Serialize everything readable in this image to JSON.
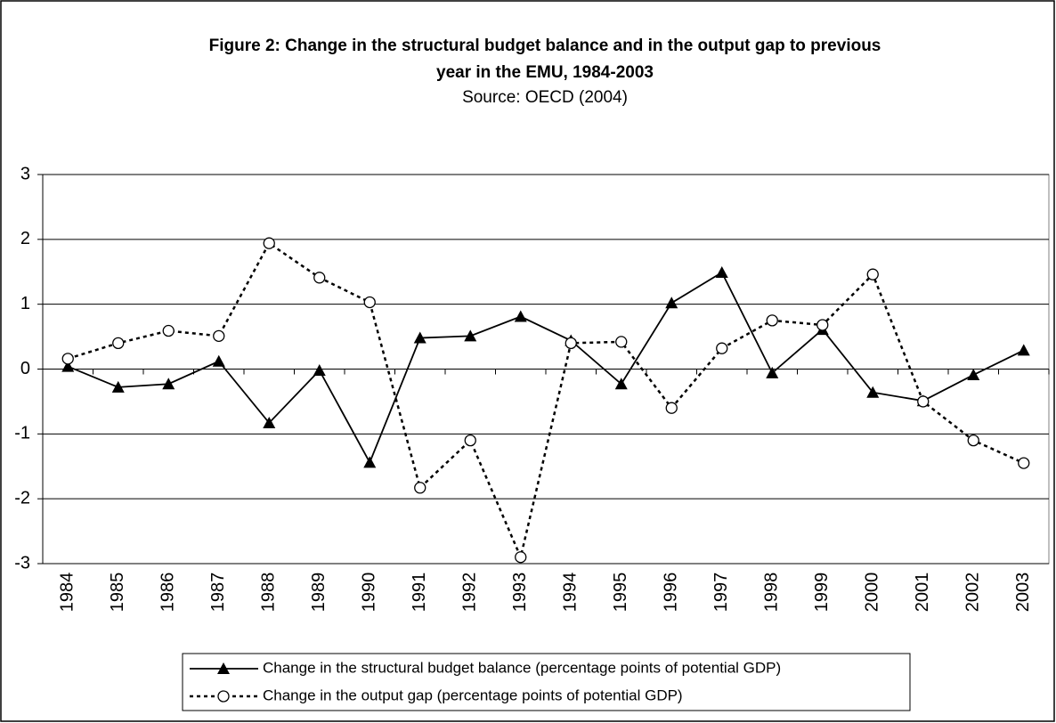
{
  "chart_data": {
    "type": "line",
    "title": [
      "Figure 2: Change in the structural budget balance and in the output gap to previous",
      "year in the EMU, 1984-2003"
    ],
    "subtitle": "Source: OECD (2004)",
    "categories": [
      "1984",
      "1985",
      "1986",
      "1987",
      "1988",
      "1989",
      "1990",
      "1991",
      "1992",
      "1993",
      "1994",
      "1995",
      "1996",
      "1997",
      "1998",
      "1999",
      "2000",
      "2001",
      "2002",
      "2003"
    ],
    "series": [
      {
        "name": "Change in the structural budget balance (percentage points of potential GDP)",
        "color": "#000000",
        "marker": "triangle",
        "dash": "solid",
        "values": [
          0.04,
          -0.28,
          -0.23,
          0.12,
          -0.83,
          -0.02,
          -1.44,
          0.48,
          0.51,
          0.81,
          0.44,
          -0.23,
          1.02,
          1.49,
          -0.06,
          0.61,
          -0.36,
          -0.49,
          -0.09,
          0.29
        ]
      },
      {
        "name": "Change in the output gap (percentage points of potential GDP)",
        "color": "#000000",
        "marker": "circle",
        "dash": "dotted",
        "values": [
          0.16,
          0.4,
          0.59,
          0.51,
          1.94,
          1.41,
          1.03,
          -1.83,
          -1.1,
          -2.9,
          0.4,
          0.42,
          -0.6,
          0.32,
          0.75,
          0.68,
          1.46,
          -0.5,
          -1.1,
          -1.45
        ]
      }
    ],
    "ylim": [
      -3,
      3
    ],
    "yticks": [
      -3,
      -2,
      -1,
      0,
      1,
      2,
      3
    ],
    "grid": true,
    "legend": "bottom"
  }
}
